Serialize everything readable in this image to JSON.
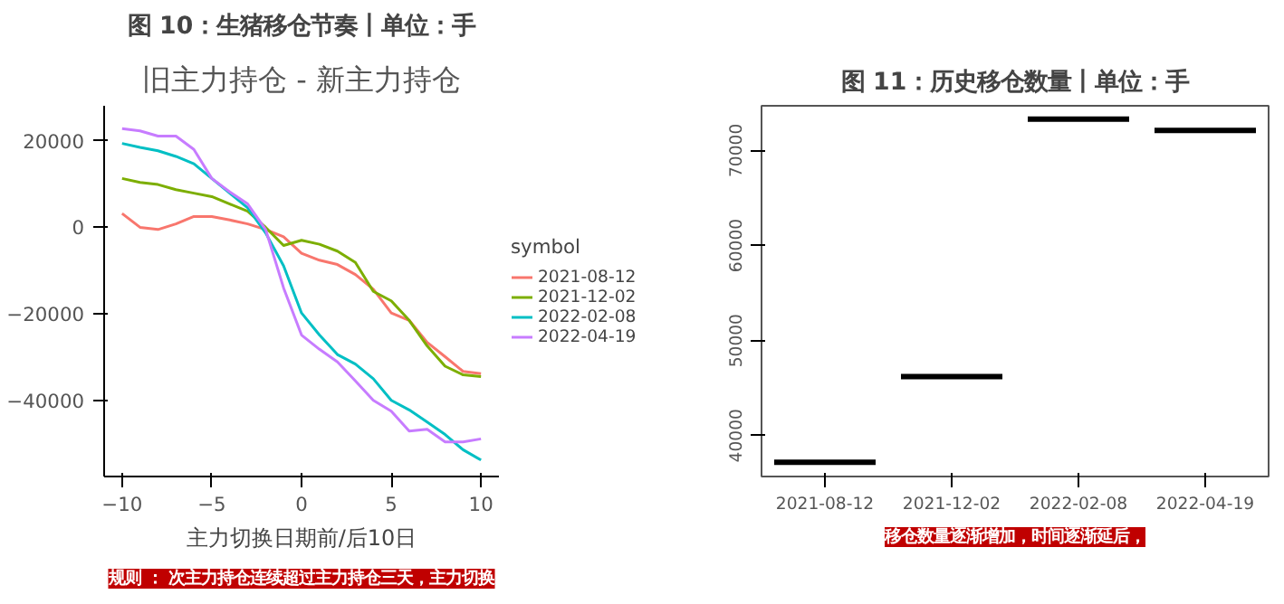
{
  "chart_data": [
    {
      "type": "line",
      "title": "图 10：生猪移仓节奏丨单位：手",
      "subtitle": "旧主力持仓 - 新主力持仓",
      "xlabel": "主力切换日期前/后10日",
      "legend_title": "symbol",
      "legend": "right",
      "grid": false,
      "x": [
        -10,
        -9,
        -8,
        -7,
        -6,
        -5,
        -4,
        -3,
        -2,
        -1,
        0,
        1,
        2,
        3,
        4,
        5,
        6,
        7,
        8,
        9,
        10
      ],
      "xlim": [
        -11,
        11
      ],
      "xticks": [
        -10,
        -5,
        0,
        5,
        10
      ],
      "ylim": [
        -57600,
        28100
      ],
      "yticks": [
        -40000,
        -20000,
        0,
        20000
      ],
      "series": [
        {
          "name": "2021-08-12",
          "color": "#f8766d",
          "values": [
            3200,
            0,
            -500,
            800,
            2500,
            2500,
            1700,
            800,
            -500,
            -2200,
            -6000,
            -7600,
            -8600,
            -10900,
            -14300,
            -19800,
            -21500,
            -26600,
            -29900,
            -33300,
            -33800
          ]
        },
        {
          "name": "2021-12-02",
          "color": "#7cae00",
          "values": [
            11300,
            10400,
            9900,
            8700,
            7900,
            7100,
            5400,
            3700,
            0,
            -4200,
            -3000,
            -3900,
            -5500,
            -8100,
            -14800,
            -17000,
            -21500,
            -27400,
            -32100,
            -34100,
            -34500
          ]
        },
        {
          "name": "2022-02-08",
          "color": "#00bfc4",
          "values": [
            19400,
            18500,
            17700,
            16400,
            14700,
            11300,
            7900,
            4500,
            -1300,
            -8900,
            -19800,
            -24900,
            -29400,
            -31600,
            -35000,
            -40000,
            -42200,
            -45000,
            -47900,
            -51400,
            -53800
          ]
        },
        {
          "name": "2022-04-19",
          "color": "#c77cff",
          "values": [
            22800,
            22300,
            21100,
            21100,
            18000,
            11300,
            8200,
            5400,
            -500,
            -14000,
            -24900,
            -28200,
            -31100,
            -35500,
            -40000,
            -42500,
            -47100,
            -46700,
            -49600,
            -49600,
            -48900
          ]
        }
      ],
      "annotations": [
        "规则 ： 次主力持仓连续超过主力持仓三天，主力切换"
      ]
    },
    {
      "type": "box",
      "title": "图 11：历史移仓数量丨单位：手",
      "grid": false,
      "categories": [
        "2021-08-12",
        "2021-12-02",
        "2022-02-08",
        "2022-04-19"
      ],
      "ylim": [
        35700,
        74700
      ],
      "yticks": [
        40000,
        50000,
        60000,
        70000
      ],
      "boxes": [
        {
          "low": 37200,
          "q1": 37200,
          "median": 37200,
          "q3": 37200,
          "high": 37200
        },
        {
          "low": 46200,
          "q1": 46200,
          "median": 46200,
          "q3": 46200,
          "high": 46200
        },
        {
          "low": 73300,
          "q1": 73300,
          "median": 73300,
          "q3": 73300,
          "high": 73300
        },
        {
          "low": 72100,
          "q1": 72100,
          "median": 72100,
          "q3": 72100,
          "high": 72100
        }
      ],
      "annotations": [
        "移仓数量逐渐增加，时间逐渐延后，"
      ]
    }
  ]
}
